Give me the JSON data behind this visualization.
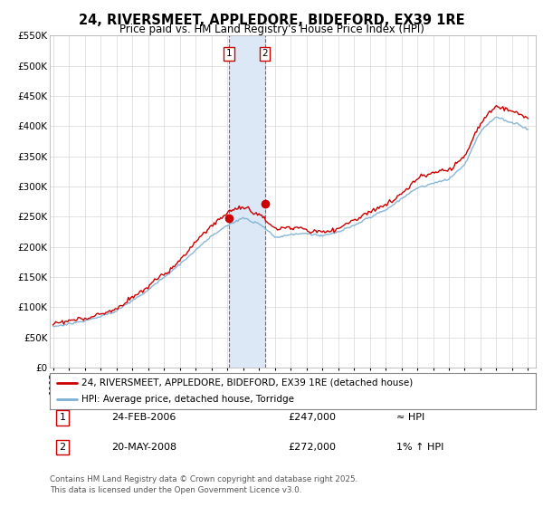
{
  "title": "24, RIVERSMEET, APPLEDORE, BIDEFORD, EX39 1RE",
  "subtitle": "Price paid vs. HM Land Registry's House Price Index (HPI)",
  "ylim": [
    0,
    550000
  ],
  "yticks": [
    0,
    50000,
    100000,
    150000,
    200000,
    250000,
    300000,
    350000,
    400000,
    450000,
    500000,
    550000
  ],
  "ytick_labels": [
    "£0",
    "£50K",
    "£100K",
    "£150K",
    "£200K",
    "£250K",
    "£300K",
    "£350K",
    "£400K",
    "£450K",
    "£500K",
    "£550K"
  ],
  "xlim_start": 1994.8,
  "xlim_end": 2025.5,
  "transaction1_x": 2006.12,
  "transaction1_y": 247000,
  "transaction1_label": "1",
  "transaction2_x": 2008.37,
  "transaction2_y": 272000,
  "transaction2_label": "2",
  "shade_color": "#dce8f5",
  "vline_color": "#cc0000",
  "vline_style": "--",
  "property_line_color": "#cc0000",
  "hpi_line_color": "#7ab0d4",
  "legend_property": "24, RIVERSMEET, APPLEDORE, BIDEFORD, EX39 1RE (detached house)",
  "legend_hpi": "HPI: Average price, detached house, Torridge",
  "table_row1_num": "1",
  "table_row1_date": "24-FEB-2006",
  "table_row1_price": "£247,000",
  "table_row1_hpi": "≈ HPI",
  "table_row2_num": "2",
  "table_row2_date": "20-MAY-2008",
  "table_row2_price": "£272,000",
  "table_row2_hpi": "1% ↑ HPI",
  "footer": "Contains HM Land Registry data © Crown copyright and database right 2025.\nThis data is licensed under the Open Government Licence v3.0.",
  "background_color": "#ffffff",
  "plot_bg_color": "#ffffff",
  "grid_color": "#d8d8d8"
}
